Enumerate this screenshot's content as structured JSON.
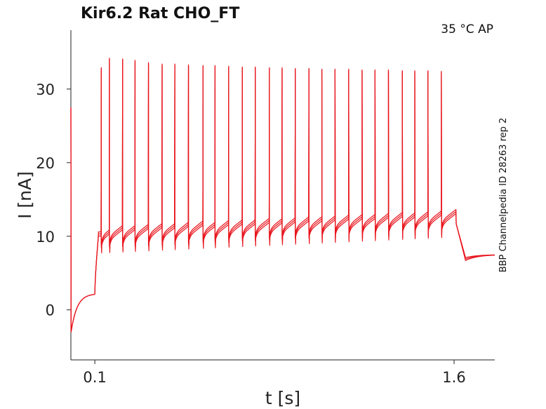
{
  "chart_data": {
    "type": "line",
    "title": "Kir6.2  Rat  CHO_FT",
    "condition": "35 °C  AP",
    "side_note": "BBP Channelpedia ID 28263 rep 2",
    "xlabel": "t [s]",
    "ylabel": "I [nA]",
    "xlim": [
      0.0,
      1.77
    ],
    "ylim": [
      -6.8,
      38.0
    ],
    "x_ticks": [
      {
        "value": 0.1,
        "label": "0.1"
      },
      {
        "value": 1.6,
        "label": "1.6"
      }
    ],
    "y_ticks": [
      {
        "value": 0,
        "label": "0"
      },
      {
        "value": 10,
        "label": "10"
      },
      {
        "value": 20,
        "label": "20"
      },
      {
        "value": 30,
        "label": "30"
      }
    ],
    "grid": false,
    "line_color": "#e8141c",
    "replicates": 3,
    "stimulus": {
      "onset_s": 0.0,
      "initial_peak_nA": 27.5,
      "initial_trough_nA": -3.0,
      "pre_step_level_nA": 2.2,
      "step_on_s": 0.1,
      "step_off_s": 1.6,
      "post_step_trough_nA": 6.7,
      "end_level_nA": 7.5
    },
    "spikes": [
      {
        "t": 0.127,
        "peak": 32.9
      },
      {
        "t": 0.161,
        "peak": 34.2
      },
      {
        "t": 0.216,
        "peak": 34.1
      },
      {
        "t": 0.268,
        "peak": 33.9
      },
      {
        "t": 0.324,
        "peak": 33.6
      },
      {
        "t": 0.381,
        "peak": 33.4
      },
      {
        "t": 0.434,
        "peak": 33.4
      },
      {
        "t": 0.491,
        "peak": 33.3
      },
      {
        "t": 0.552,
        "peak": 33.2
      },
      {
        "t": 0.602,
        "peak": 33.2
      },
      {
        "t": 0.659,
        "peak": 33.1
      },
      {
        "t": 0.716,
        "peak": 33.0
      },
      {
        "t": 0.77,
        "peak": 33.0
      },
      {
        "t": 0.829,
        "peak": 32.9
      },
      {
        "t": 0.882,
        "peak": 32.9
      },
      {
        "t": 0.937,
        "peak": 32.8
      },
      {
        "t": 0.994,
        "peak": 32.8
      },
      {
        "t": 1.048,
        "peak": 32.7
      },
      {
        "t": 1.103,
        "peak": 32.7
      },
      {
        "t": 1.16,
        "peak": 32.7
      },
      {
        "t": 1.216,
        "peak": 32.6
      },
      {
        "t": 1.27,
        "peak": 32.6
      },
      {
        "t": 1.326,
        "peak": 32.6
      },
      {
        "t": 1.384,
        "peak": 32.5
      },
      {
        "t": 1.436,
        "peak": 32.5
      },
      {
        "t": 1.491,
        "peak": 32.5
      },
      {
        "t": 1.547,
        "peak": 32.4
      }
    ]
  }
}
